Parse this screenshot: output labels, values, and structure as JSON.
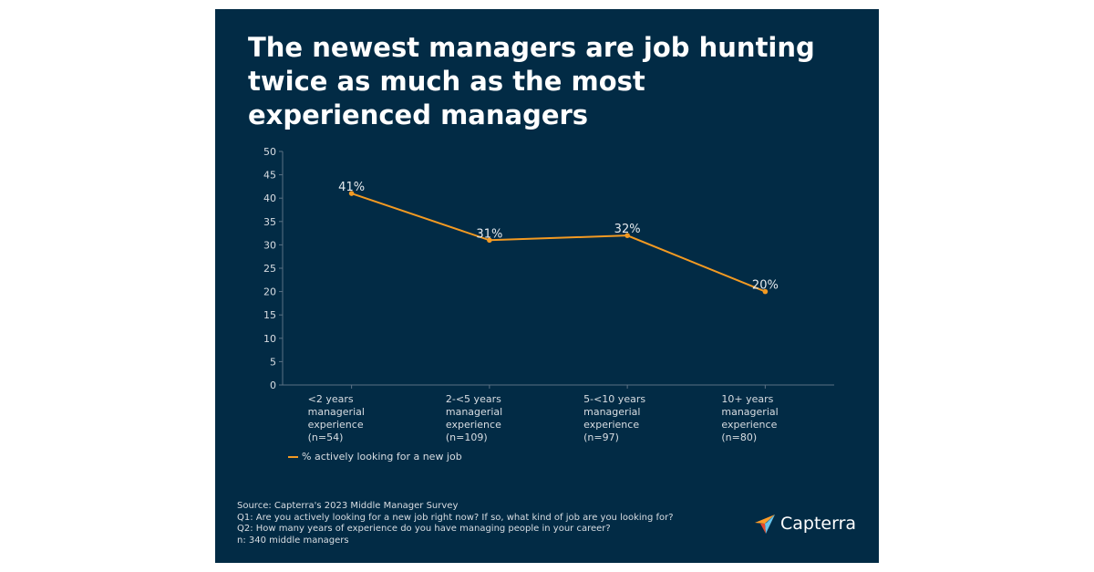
{
  "title": "The newest managers are job hunting twice as much as the most experienced managers",
  "chart_data": {
    "type": "line",
    "title": "The newest managers are job hunting twice as much as the most experienced managers",
    "categories": [
      [
        "<2 years",
        "managerial",
        "experience",
        "(n=54)"
      ],
      [
        "2-<5 years",
        "managerial",
        "experience",
        "(n=109)"
      ],
      [
        "5-<10 years",
        "managerial",
        "experience",
        "(n=97)"
      ],
      [
        "10+ years",
        "managerial",
        "experience",
        "(n=80)"
      ]
    ],
    "series": [
      {
        "name": "% actively looking for a new job",
        "values": [
          41,
          31,
          32,
          20
        ],
        "labels": [
          "41%",
          "31%",
          "32%",
          "20%"
        ],
        "color": "#f39a22"
      }
    ],
    "ylim": [
      0,
      50
    ],
    "yticks": [
      "0",
      "5",
      "10",
      "15",
      "20",
      "25",
      "30",
      "35",
      "40",
      "45",
      "50"
    ],
    "grid": false,
    "legend": "bottom-left"
  },
  "notes": [
    "Source: Capterra's 2023 Middle Manager Survey",
    "Q1: Are you actively looking for a new job right now? If so, what kind of job are you looking for?",
    "Q2: How many years of experience do you have managing people in your career?",
    "n: 340 middle managers"
  ],
  "logo": {
    "text": "Capterra"
  },
  "colors": {
    "background": "#022b45",
    "line": "#f39a22"
  }
}
